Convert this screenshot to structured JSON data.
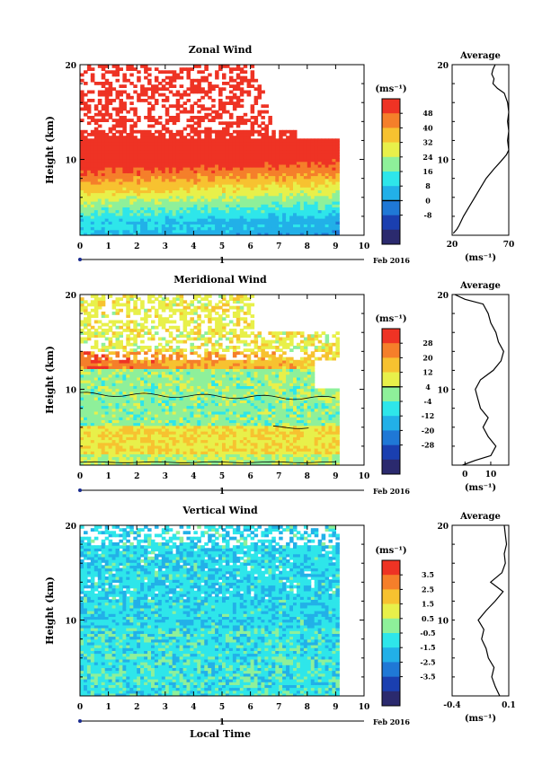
{
  "chart_data": [
    {
      "type": "heatmap",
      "title": "Zonal Wind",
      "xlabel": "",
      "ylabel": "Height (km)",
      "xlim": [
        0,
        10
      ],
      "ylim": [
        2,
        20
      ],
      "x_ticks": [
        "0",
        "1",
        "2",
        "3",
        "4",
        "5",
        "6",
        "7",
        "8",
        "9",
        "10"
      ],
      "y_ticks": [
        "10",
        "20"
      ],
      "date_marker": "1",
      "date_label": "Feb 2016",
      "colorbar": {
        "unit": "(ms⁻¹)",
        "levels": [
          "48",
          "40",
          "32",
          "24",
          "16",
          "8",
          "0",
          "-8"
        ],
        "zero_line": "0"
      },
      "profile": {
        "title": "Average",
        "xlabel": "(ms⁻¹)",
        "x_ticks": [
          "20",
          "70"
        ],
        "xlim": [
          20,
          70
        ],
        "y_ticks": [
          "10",
          "20"
        ],
        "heights": [
          2.2,
          2.6,
          3,
          4,
          5,
          6,
          7,
          8,
          9,
          9.8,
          10.5,
          11,
          12,
          13,
          14,
          15,
          16,
          17,
          17.5,
          18,
          18.5,
          19,
          19.5,
          20
        ],
        "values": [
          21,
          24,
          26,
          30,
          35,
          40,
          45,
          50,
          57,
          63,
          68,
          70,
          69,
          70,
          69,
          70,
          69,
          66,
          60,
          56,
          57,
          55,
          56,
          58
        ]
      }
    },
    {
      "type": "heatmap",
      "title": "Meridional Wind",
      "xlabel": "",
      "ylabel": "Height (km)",
      "xlim": [
        0,
        10
      ],
      "ylim": [
        2,
        20
      ],
      "x_ticks": [
        "0",
        "1",
        "2",
        "3",
        "4",
        "5",
        "6",
        "7",
        "8",
        "9",
        "10"
      ],
      "y_ticks": [
        "10",
        "20"
      ],
      "date_marker": "1",
      "date_label": "Feb 2016",
      "colorbar": {
        "unit": "(ms⁻¹)",
        "levels": [
          "28",
          "20",
          "12",
          "4",
          "-4",
          "-12",
          "-20",
          "-28"
        ],
        "zero_line": "0"
      },
      "profile": {
        "title": "Average",
        "xlabel": "(ms⁻¹)",
        "x_ticks": [
          "0",
          "10"
        ],
        "xlim": [
          -5,
          17
        ],
        "y_ticks": [
          "10",
          "20"
        ],
        "heights": [
          2,
          2.5,
          3,
          4,
          5,
          6,
          7,
          8,
          9,
          10,
          11,
          12,
          13,
          14,
          15,
          16,
          17,
          18,
          19,
          19.5,
          20
        ],
        "values": [
          -1,
          4,
          10,
          12,
          9,
          7,
          9,
          6,
          5,
          4,
          6,
          11,
          14,
          15,
          13,
          12,
          10,
          9,
          7,
          0,
          -4
        ]
      }
    },
    {
      "type": "heatmap",
      "title": "Vertical Wind",
      "xlabel": "Local Time",
      "ylabel": "Height (km)",
      "xlim": [
        0,
        10
      ],
      "ylim": [
        2,
        20
      ],
      "x_ticks": [
        "0",
        "1",
        "2",
        "3",
        "4",
        "5",
        "6",
        "7",
        "8",
        "9",
        "10"
      ],
      "y_ticks": [
        "10",
        "20"
      ],
      "date_marker": "1",
      "date_label": "Feb 2016",
      "colorbar": {
        "unit": "(ms⁻¹)",
        "levels": [
          "3.5",
          "2.5",
          "1.5",
          "0.5",
          "-0.5",
          "-1.5",
          "-2.5",
          "-3.5"
        ]
      },
      "profile": {
        "title": "Average",
        "xlabel": "(ms⁻¹)",
        "x_ticks": [
          "-0.4",
          "0.1"
        ],
        "xlim": [
          -0.4,
          0.1
        ],
        "y_ticks": [
          "10",
          "20"
        ],
        "heights": [
          2,
          2.5,
          3,
          4,
          5,
          6,
          7,
          8,
          9,
          10,
          11,
          12,
          13,
          14,
          15,
          16,
          17,
          18,
          19,
          20
        ],
        "values": [
          0.02,
          0.0,
          -0.02,
          -0.05,
          -0.03,
          -0.08,
          -0.1,
          -0.14,
          -0.12,
          -0.17,
          -0.1,
          -0.02,
          0.05,
          -0.06,
          0.04,
          0.07,
          0.06,
          0.08,
          0.07,
          0.06
        ]
      }
    }
  ]
}
